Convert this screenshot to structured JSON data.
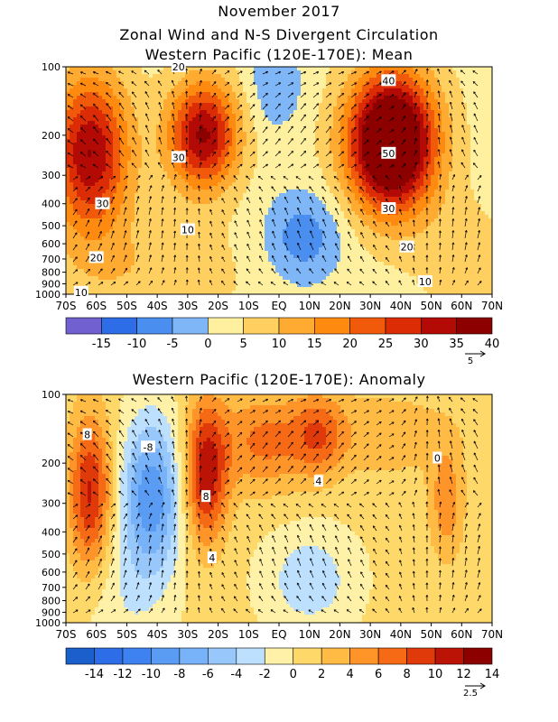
{
  "header": {
    "date": "November 2017",
    "title_line1": "Zonal Wind and N-S Divergent Circulation",
    "title_line2": "Western Pacific (120E-170E): Mean"
  },
  "chart_data": [
    {
      "type": "heatmap",
      "title": "Western Pacific (120E-170E): Mean",
      "x_tick_labels": [
        "70S",
        "60S",
        "50S",
        "40S",
        "30S",
        "20S",
        "10S",
        "EQ",
        "10N",
        "20N",
        "30N",
        "40N",
        "50N",
        "60N",
        "70N"
      ],
      "y_tick_labels": [
        "100",
        "200",
        "300",
        "400",
        "500",
        "600",
        "700",
        "800",
        "900",
        "1000"
      ],
      "y_tick_values": [
        100,
        200,
        300,
        400,
        500,
        600,
        700,
        800,
        900,
        1000
      ],
      "y_scale": "log-pressure",
      "colorbar_labels": [
        "-15",
        "-10",
        "-5",
        "0",
        "5",
        "10",
        "15",
        "20",
        "25",
        "30",
        "35",
        "40"
      ],
      "colorbar_colors": [
        "#7060d0",
        "#2d6ee8",
        "#4a8ef0",
        "#7eb6f8",
        "#fff0a0",
        "#ffd060",
        "#ffaa30",
        "#ff8a10",
        "#f05a0a",
        "#dc2c06",
        "#b40a06",
        "#8c0000"
      ],
      "contour_labels": [
        {
          "text": "20",
          "lon": -33,
          "p": 100
        },
        {
          "text": "30",
          "lon": -58,
          "p": 400
        },
        {
          "text": "30",
          "lon": -33,
          "p": 250
        },
        {
          "text": "10",
          "lon": -30,
          "p": 520
        },
        {
          "text": "20",
          "lon": -60,
          "p": 690
        },
        {
          "text": "40",
          "lon": 36,
          "p": 115
        },
        {
          "text": "50",
          "lon": 36,
          "p": 240
        },
        {
          "text": "30",
          "lon": 36,
          "p": 420
        },
        {
          "text": "20",
          "lon": 42,
          "p": 620
        },
        {
          "text": "10",
          "lon": 48,
          "p": 880
        },
        {
          "text": "10",
          "lon": -65,
          "p": 980
        }
      ],
      "jets": [
        {
          "lon": -62,
          "p": 240,
          "max": 32
        },
        {
          "lon": -25,
          "p": 200,
          "max": 33
        },
        {
          "lon": 37,
          "p": 215,
          "max": 52
        }
      ],
      "negative_regions": [
        {
          "lon": 8,
          "p": 560,
          "min": -7
        },
        {
          "lon": -1,
          "p": 120,
          "min": -3
        }
      ],
      "vector_reference": "5"
    },
    {
      "type": "heatmap",
      "title": "Western Pacific (120E-170E): Anomaly",
      "x_tick_labels": [
        "70S",
        "60S",
        "50S",
        "40S",
        "30S",
        "20S",
        "10S",
        "EQ",
        "10N",
        "20N",
        "30N",
        "40N",
        "50N",
        "60N",
        "70N"
      ],
      "y_tick_labels": [
        "100",
        "200",
        "300",
        "400",
        "500",
        "600",
        "700",
        "800",
        "900",
        "1000"
      ],
      "y_tick_values": [
        100,
        200,
        300,
        400,
        500,
        600,
        700,
        800,
        900,
        1000
      ],
      "y_scale": "log-pressure",
      "colorbar_labels": [
        "-14",
        "-12",
        "-10",
        "-8",
        "-6",
        "-4",
        "-2",
        "0",
        "2",
        "4",
        "6",
        "8",
        "10",
        "12",
        "14"
      ],
      "colorbar_colors": [
        "#1a5fcc",
        "#2d6ee8",
        "#3d82f0",
        "#5a9cf4",
        "#78b2f8",
        "#98c8fb",
        "#bde0fe",
        "#fff2a8",
        "#ffd86a",
        "#ffbb44",
        "#ff9528",
        "#f66a16",
        "#e03a0a",
        "#bb1306",
        "#8c0000"
      ],
      "contour_labels": [
        {
          "text": "8",
          "lon": -63,
          "p": 150
        },
        {
          "text": "-8",
          "lon": -43,
          "p": 170
        },
        {
          "text": "8",
          "lon": -24,
          "p": 280
        },
        {
          "text": "4",
          "lon": -22,
          "p": 520
        },
        {
          "text": "4",
          "lon": 13,
          "p": 240
        },
        {
          "text": "0",
          "lon": 52,
          "p": 190
        }
      ],
      "vector_reference": "2.5"
    }
  ]
}
